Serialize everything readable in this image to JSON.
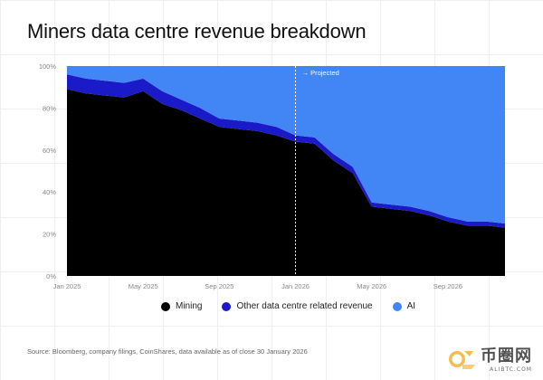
{
  "title": "Miners data centre revenue breakdown",
  "source": "Source: Bloomberg, company filings, CoinShares, data available as of close 30 January 2026",
  "colors": {
    "mining": "#000000",
    "other": "#1a1ac8",
    "ai": "#4285f4",
    "projection_line": "#ffffff",
    "tick_text": "#888888"
  },
  "watermark": {
    "cn": "币圈网",
    "url": "ALIBTC.COM",
    "icon": "coin-logo-icon"
  },
  "chart_data": {
    "type": "area",
    "stacked": true,
    "x": [
      "2025-01",
      "2025-02",
      "2025-03",
      "2025-04",
      "2025-05",
      "2025-06",
      "2025-07",
      "2025-08",
      "2025-09",
      "2025-10",
      "2025-11",
      "2025-12",
      "2026-01",
      "2026-02",
      "2026-03",
      "2026-04",
      "2026-05",
      "2026-06",
      "2026-07",
      "2026-08",
      "2026-09",
      "2026-10",
      "2026-11",
      "2026-12"
    ],
    "series": [
      {
        "name": "Mining",
        "color_key": "mining",
        "values": [
          89,
          87,
          86,
          85,
          88,
          82,
          79,
          75,
          71,
          70,
          69,
          67,
          64,
          63,
          55,
          49,
          33,
          32,
          31,
          29,
          26,
          24,
          24,
          23
        ]
      },
      {
        "name": "Other data centre related revenue",
        "color_key": "other",
        "values": [
          7,
          7,
          7,
          7,
          6,
          6,
          5,
          5,
          4,
          4,
          4,
          4,
          3,
          3,
          3,
          3,
          2,
          2,
          2,
          2,
          2,
          2,
          2,
          2
        ]
      },
      {
        "name": "AI",
        "color_key": "ai",
        "values": [
          4,
          6,
          7,
          8,
          6,
          12,
          16,
          20,
          25,
          26,
          27,
          29,
          33,
          34,
          42,
          48,
          65,
          66,
          67,
          69,
          72,
          74,
          74,
          75
        ]
      }
    ],
    "y_ticks": [
      "0%",
      "20%",
      "40%",
      "60%",
      "80%",
      "100%"
    ],
    "y_tick_values": [
      0,
      20,
      40,
      60,
      80,
      100
    ],
    "ylim": [
      0,
      100
    ],
    "x_ticks": [
      {
        "label": "Jan 2025",
        "x": "2025-01"
      },
      {
        "label": "May 2025",
        "x": "2025-05"
      },
      {
        "label": "Sep 2025",
        "x": "2025-09"
      },
      {
        "label": "Jan 2026",
        "x": "2026-01"
      },
      {
        "label": "May 2026",
        "x": "2026-05"
      },
      {
        "label": "Sep 2026",
        "x": "2026-09"
      }
    ],
    "projection": {
      "x": "2026-01",
      "label": "→ Projected"
    },
    "legend_position": "bottom",
    "grid": false
  }
}
